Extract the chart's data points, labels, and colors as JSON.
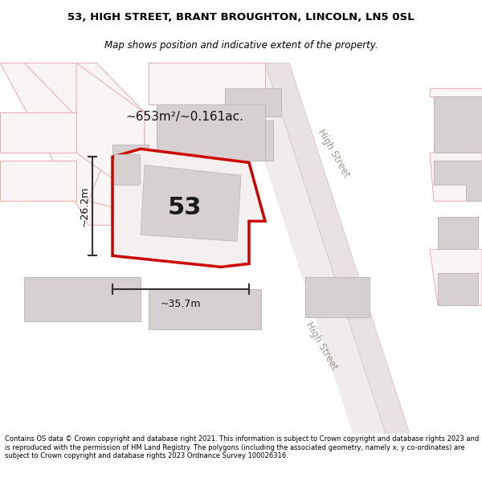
{
  "title_line1": "53, HIGH STREET, BRANT BROUGHTON, LINCOLN, LN5 0SL",
  "title_line2": "Map shows position and indicative extent of the property.",
  "footer": "Contains OS data © Crown copyright and database right 2021. This information is subject to Crown copyright and database rights 2023 and is reproduced with the permission of HM Land Registry. The polygons (including the associated geometry, namely x, y co-ordinates) are subject to Crown copyright and database rights 2023 Ordnance Survey 100026316.",
  "area_label": "~653m²/~0.161ac.",
  "width_label": "~35.7m",
  "height_label": "~26.2m",
  "number_label": "53",
  "map_bg": "#f7f4f4",
  "road_color": "#e8e2e2",
  "road_edge": "#ccbfbf",
  "building_fill": "#d6d0d0",
  "building_stroke": "#bfb8b8",
  "highlight_stroke": "#cc0000",
  "highlight_fill": "#f5f0f0",
  "dim_line_color": "#333333",
  "road_label_color": "#999990",
  "faint_line_color": "#e8aaaa",
  "faint_fill": "#faf5f5"
}
